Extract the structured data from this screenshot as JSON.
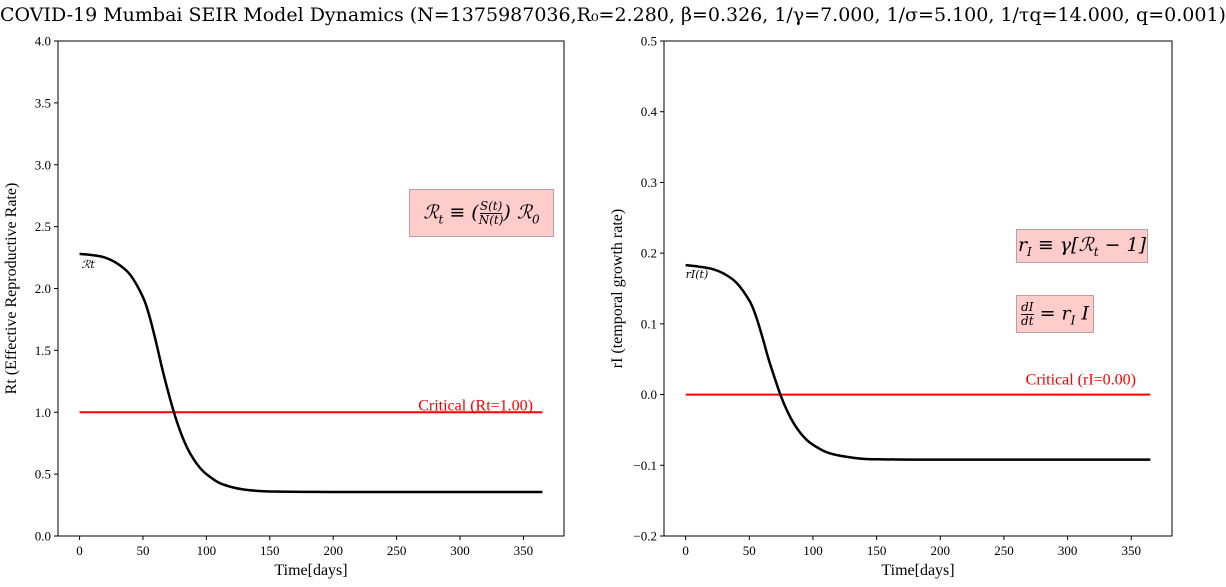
{
  "title": "COVID-19 Mumbai SEIR Model Dynamics (N=1375987036,R₀=2.280, β=0.326, 1/γ=7.000, 1/σ=5.100, 1/τq=14.000, q=0.001)",
  "colors": {
    "curve": "#000000",
    "critical": "#ff0000",
    "box_bg": "#ffcccc"
  },
  "chart_data": [
    {
      "type": "line",
      "xlabel": "Time[days]",
      "ylabel": "Rt (Effective Reproductive Rate)",
      "xlim": [
        -17,
        382
      ],
      "ylim": [
        0.0,
        4.0
      ],
      "xticks": [
        0,
        50,
        100,
        150,
        200,
        250,
        300,
        350
      ],
      "yticks": [
        0.0,
        0.5,
        1.0,
        1.5,
        2.0,
        2.5,
        3.0,
        3.5,
        4.0
      ],
      "ytick_labels": [
        "0.0",
        "0.5",
        "1.0",
        "1.5",
        "2.0",
        "2.5",
        "3.0",
        "3.5",
        "4.0"
      ],
      "series": [
        {
          "label": "ℛt",
          "x": [
            0,
            10,
            20,
            30,
            40,
            50,
            55,
            60,
            65,
            70,
            75,
            80,
            85,
            90,
            95,
            100,
            110,
            120,
            130,
            140,
            150,
            175,
            200,
            250,
            300,
            365
          ],
          "y": [
            2.28,
            2.27,
            2.25,
            2.2,
            2.11,
            1.93,
            1.78,
            1.58,
            1.36,
            1.16,
            0.98,
            0.83,
            0.71,
            0.62,
            0.55,
            0.5,
            0.43,
            0.395,
            0.375,
            0.365,
            0.36,
            0.357,
            0.356,
            0.356,
            0.356,
            0.356
          ]
        }
      ],
      "critical": {
        "value": 1.0,
        "x": [
          0,
          365
        ],
        "label": "Critical (Rt=1.00)"
      },
      "box": "ℛt ≡ (S(t)/N(t)) ℛ0"
    },
    {
      "type": "line",
      "xlabel": "Time[days]",
      "ylabel": "rI (temporal growth rate)",
      "xlim": [
        -17,
        382
      ],
      "ylim": [
        -0.2,
        0.5
      ],
      "xticks": [
        0,
        50,
        100,
        150,
        200,
        250,
        300,
        350
      ],
      "yticks": [
        -0.2,
        -0.1,
        0.0,
        0.1,
        0.2,
        0.3,
        0.4,
        0.5
      ],
      "ytick_labels": [
        "−0.2",
        "−0.1",
        "0.0",
        "0.1",
        "0.2",
        "0.3",
        "0.4",
        "0.5"
      ],
      "series": [
        {
          "label": "rI(t)",
          "x": [
            0,
            10,
            20,
            30,
            40,
            50,
            55,
            60,
            65,
            70,
            75,
            80,
            85,
            90,
            95,
            100,
            110,
            120,
            130,
            140,
            150,
            175,
            200,
            250,
            300,
            365
          ],
          "y": [
            0.183,
            0.181,
            0.178,
            0.171,
            0.158,
            0.133,
            0.112,
            0.083,
            0.051,
            0.023,
            -0.003,
            -0.024,
            -0.041,
            -0.054,
            -0.064,
            -0.071,
            -0.081,
            -0.086,
            -0.089,
            -0.091,
            -0.0915,
            -0.092,
            -0.092,
            -0.092,
            -0.092,
            -0.092
          ]
        }
      ],
      "critical": {
        "value": 0.0,
        "x": [
          0,
          365
        ],
        "label": "Critical (rI=0.00)"
      },
      "boxes": [
        "rI ≡ γ[ℛt − 1]",
        "dI/dt = rI I"
      ]
    }
  ]
}
